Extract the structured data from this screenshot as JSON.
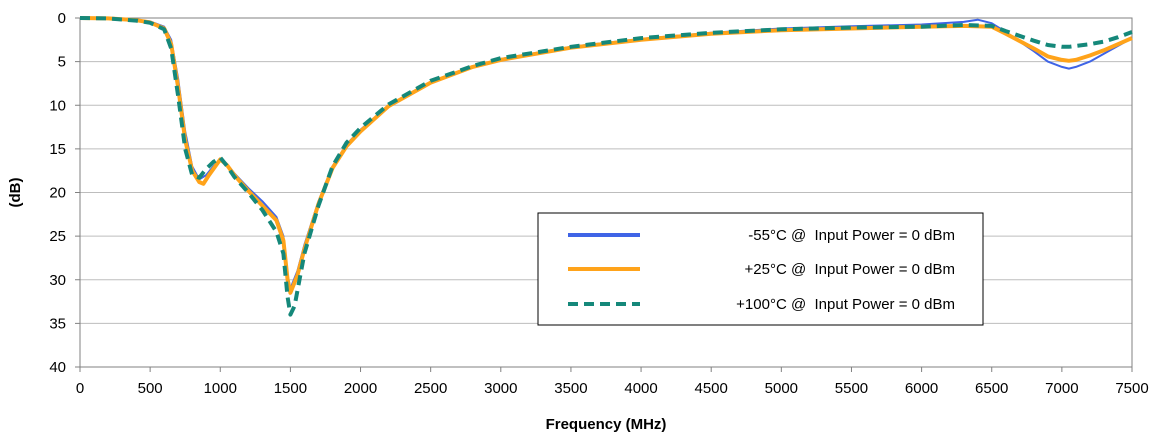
{
  "chart_data": {
    "type": "line",
    "title": "",
    "xlabel": "Frequency (MHz)",
    "ylabel": "(dB)",
    "xlim": [
      0,
      7500
    ],
    "ylim": [
      0,
      40
    ],
    "y_inverted": true,
    "x_ticks": [
      0,
      500,
      1000,
      1500,
      2000,
      2500,
      3000,
      3500,
      4000,
      4500,
      5000,
      5500,
      6000,
      6500,
      7000,
      7500
    ],
    "y_ticks": [
      0,
      5,
      10,
      15,
      20,
      25,
      30,
      35,
      40
    ],
    "grid": "horizontal",
    "legend_position": "center-right",
    "series": [
      {
        "name": "-55°C @  Input Power = 0 dBm",
        "color": "#3f64e6",
        "dash": "solid",
        "points": [
          [
            0,
            0
          ],
          [
            200,
            0.05
          ],
          [
            400,
            0.2
          ],
          [
            500,
            0.4
          ],
          [
            600,
            1.0
          ],
          [
            650,
            2.5
          ],
          [
            700,
            7
          ],
          [
            750,
            13
          ],
          [
            800,
            17
          ],
          [
            850,
            18.5
          ],
          [
            900,
            18
          ],
          [
            950,
            17
          ],
          [
            1000,
            16.2
          ],
          [
            1050,
            16.8
          ],
          [
            1100,
            17.8
          ],
          [
            1200,
            19.5
          ],
          [
            1300,
            21
          ],
          [
            1400,
            22.8
          ],
          [
            1450,
            25
          ],
          [
            1480,
            29.5
          ],
          [
            1500,
            31
          ],
          [
            1550,
            29
          ],
          [
            1600,
            26
          ],
          [
            1700,
            21
          ],
          [
            1800,
            17
          ],
          [
            1900,
            14.5
          ],
          [
            2000,
            12.8
          ],
          [
            2200,
            10
          ],
          [
            2500,
            7.3
          ],
          [
            2800,
            5.6
          ],
          [
            3000,
            4.7
          ],
          [
            3500,
            3.3
          ],
          [
            4000,
            2.4
          ],
          [
            4500,
            1.7
          ],
          [
            5000,
            1.2
          ],
          [
            5500,
            0.95
          ],
          [
            6000,
            0.75
          ],
          [
            6300,
            0.45
          ],
          [
            6400,
            0.2
          ],
          [
            6500,
            0.6
          ],
          [
            6600,
            1.6
          ],
          [
            6800,
            3.8
          ],
          [
            6900,
            5
          ],
          [
            7000,
            5.6
          ],
          [
            7050,
            5.8
          ],
          [
            7100,
            5.6
          ],
          [
            7200,
            5
          ],
          [
            7300,
            4.1
          ],
          [
            7400,
            3.2
          ],
          [
            7500,
            2.3
          ]
        ]
      },
      {
        "name": "+25°C @  Input Power = 0 dBm",
        "color": "#ffa31a",
        "dash": "solid",
        "points": [
          [
            0,
            0
          ],
          [
            200,
            0.05
          ],
          [
            400,
            0.25
          ],
          [
            500,
            0.5
          ],
          [
            600,
            1.2
          ],
          [
            650,
            3
          ],
          [
            700,
            8
          ],
          [
            750,
            14
          ],
          [
            800,
            17.5
          ],
          [
            850,
            18.8
          ],
          [
            880,
            19
          ],
          [
            920,
            18
          ],
          [
            1000,
            16.2
          ],
          [
            1050,
            16.9
          ],
          [
            1100,
            18
          ],
          [
            1200,
            19.8
          ],
          [
            1300,
            21.5
          ],
          [
            1400,
            23.2
          ],
          [
            1450,
            25.5
          ],
          [
            1480,
            30
          ],
          [
            1500,
            31.5
          ],
          [
            1550,
            29.5
          ],
          [
            1600,
            26.5
          ],
          [
            1700,
            21.3
          ],
          [
            1800,
            17.2
          ],
          [
            1900,
            14.7
          ],
          [
            2000,
            13
          ],
          [
            2200,
            10.1
          ],
          [
            2500,
            7.4
          ],
          [
            2800,
            5.6
          ],
          [
            3000,
            4.8
          ],
          [
            3500,
            3.4
          ],
          [
            4000,
            2.5
          ],
          [
            4500,
            1.8
          ],
          [
            5000,
            1.4
          ],
          [
            5500,
            1.2
          ],
          [
            6000,
            1.0
          ],
          [
            6300,
            0.9
          ],
          [
            6500,
            1.0
          ],
          [
            6600,
            1.8
          ],
          [
            6800,
            3.5
          ],
          [
            6900,
            4.4
          ],
          [
            7000,
            4.8
          ],
          [
            7050,
            4.9
          ],
          [
            7100,
            4.8
          ],
          [
            7200,
            4.3
          ],
          [
            7300,
            3.7
          ],
          [
            7400,
            3.0
          ],
          [
            7500,
            2.3
          ]
        ]
      },
      {
        "name": "+100°C @  Input Power = 0 dBm",
        "color": "#15887a",
        "dash": "dashed",
        "points": [
          [
            0,
            0
          ],
          [
            200,
            0.05
          ],
          [
            400,
            0.3
          ],
          [
            500,
            0.55
          ],
          [
            600,
            1.3
          ],
          [
            650,
            3.5
          ],
          [
            700,
            9
          ],
          [
            750,
            15
          ],
          [
            800,
            18
          ],
          [
            850,
            18.3
          ],
          [
            900,
            17.3
          ],
          [
            950,
            16.5
          ],
          [
            1000,
            16
          ],
          [
            1050,
            17
          ],
          [
            1100,
            18.2
          ],
          [
            1200,
            20
          ],
          [
            1300,
            22
          ],
          [
            1400,
            24.5
          ],
          [
            1450,
            27
          ],
          [
            1480,
            32
          ],
          [
            1500,
            34
          ],
          [
            1530,
            33
          ],
          [
            1600,
            27
          ],
          [
            1700,
            21.5
          ],
          [
            1800,
            17
          ],
          [
            1900,
            14.3
          ],
          [
            2000,
            12.6
          ],
          [
            2200,
            9.9
          ],
          [
            2500,
            7.2
          ],
          [
            2800,
            5.5
          ],
          [
            3000,
            4.6
          ],
          [
            3500,
            3.3
          ],
          [
            4000,
            2.3
          ],
          [
            4500,
            1.7
          ],
          [
            5000,
            1.3
          ],
          [
            5500,
            1.1
          ],
          [
            6000,
            1.0
          ],
          [
            6300,
            0.8
          ],
          [
            6500,
            0.9
          ],
          [
            6600,
            1.5
          ],
          [
            6800,
            2.6
          ],
          [
            6900,
            3.1
          ],
          [
            7000,
            3.3
          ],
          [
            7050,
            3.3
          ],
          [
            7100,
            3.2
          ],
          [
            7200,
            3.0
          ],
          [
            7300,
            2.7
          ],
          [
            7400,
            2.2
          ],
          [
            7500,
            1.6
          ]
        ]
      }
    ]
  }
}
